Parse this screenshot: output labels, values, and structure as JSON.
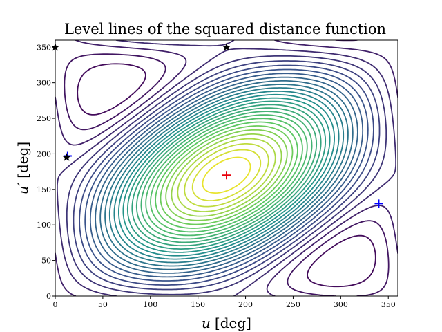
{
  "chart_data": {
    "type": "contour",
    "title": "Level lines of the squared distance function",
    "xlabel_var": "u",
    "ylabel_var": "u′",
    "unit_label": "[deg]",
    "xlim": [
      0,
      360
    ],
    "ylim": [
      0,
      360
    ],
    "xticks": [
      "0",
      "50",
      "100",
      "150",
      "200",
      "250",
      "300",
      "350"
    ],
    "yticks": [
      "0",
      "50",
      "100",
      "150",
      "200",
      "250",
      "300",
      "350"
    ],
    "colormap": [
      "#440154",
      "#3b528b",
      "#21918c",
      "#5ec962",
      "#fde725"
    ],
    "grid": false,
    "level_count": 30,
    "markers": [
      {
        "symbol": "plus",
        "color": "#e8000b",
        "x": 180,
        "y": 170
      },
      {
        "symbol": "plus",
        "color": "#0000ff",
        "x": 340,
        "y": 130
      },
      {
        "symbol": "plus",
        "color": "#0000ff",
        "x": 13,
        "y": 197
      },
      {
        "symbol": "star",
        "color": "#000000",
        "x": 0,
        "y": 350
      },
      {
        "symbol": "star",
        "color": "#000000",
        "x": 180,
        "y": 350
      },
      {
        "symbol": "star",
        "color": "#000000",
        "x": 12,
        "y": 195
      }
    ]
  }
}
